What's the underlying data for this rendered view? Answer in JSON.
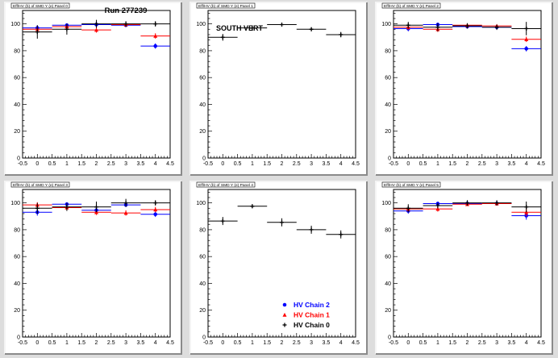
{
  "charts": [
    {
      "type": "scatter",
      "tab_label": "Eff/HV (b) of SMD Y (e) Panel 0",
      "header": "Run 277239",
      "label": "",
      "xlim": [
        -0.5,
        4.5
      ],
      "ylim": [
        0,
        110
      ],
      "xticks": [
        "-0.5",
        "0",
        "0.5",
        "1",
        "1.5",
        "2",
        "2.5",
        "3",
        "3.5",
        "4",
        "4.5"
      ],
      "yticks": [
        "0",
        "20",
        "40",
        "60",
        "80",
        "100"
      ],
      "series": [
        {
          "color": "#0000ff",
          "marker": "circle",
          "x": [
            0,
            1,
            2,
            3,
            4
          ],
          "y": [
            97,
            99,
            99.5,
            99,
            83.5
          ],
          "yerr": [
            2,
            1.5,
            1,
            1,
            2
          ]
        },
        {
          "color": "#ff0000",
          "marker": "triangle",
          "x": [
            0,
            1,
            2,
            3,
            4
          ],
          "y": [
            96,
            98,
            95.5,
            99.5,
            91
          ],
          "yerr": [
            2,
            1.5,
            2,
            1,
            2
          ]
        },
        {
          "color": "#000000",
          "marker": "plus",
          "x": [
            0,
            1,
            2,
            3,
            4
          ],
          "y": [
            94,
            96,
            100,
            100,
            100
          ],
          "yerr": [
            5,
            4,
            3,
            2,
            2
          ]
        }
      ]
    },
    {
      "type": "scatter",
      "tab_label": "Eff/HV (b) of SMD Y (e) Panel 1",
      "header": "",
      "label": "SOUTH VERT",
      "xlim": [
        -0.5,
        4.5
      ],
      "ylim": [
        0,
        110
      ],
      "xticks": [
        "-0.5",
        "0",
        "0.5",
        "1",
        "1.5",
        "2",
        "2.5",
        "3",
        "3.5",
        "4",
        "4.5"
      ],
      "yticks": [
        "0",
        "20",
        "40",
        "60",
        "80",
        "100"
      ],
      "series": [
        {
          "color": "#000000",
          "marker": "plus",
          "x": [
            0,
            1,
            2,
            3,
            4
          ],
          "y": [
            90,
            97,
            99.5,
            96,
            92
          ],
          "yerr": [
            2.5,
            1.5,
            1,
            1.5,
            2
          ]
        }
      ]
    },
    {
      "type": "scatter",
      "tab_label": "Eff/HV (b) of SMD Y (e) Panel 2",
      "header": "",
      "label": "",
      "xlim": [
        -0.5,
        4.5
      ],
      "ylim": [
        0,
        110
      ],
      "xticks": [
        "-0.5",
        "0",
        "0.5",
        "1",
        "1.5",
        "2",
        "2.5",
        "3",
        "3.5",
        "4",
        "4.5"
      ],
      "yticks": [
        "0",
        "20",
        "40",
        "60",
        "80",
        "100"
      ],
      "series": [
        {
          "color": "#0000ff",
          "marker": "circle",
          "x": [
            0,
            1,
            2,
            3,
            4
          ],
          "y": [
            96.5,
            99.5,
            98,
            97.5,
            81.5
          ],
          "yerr": [
            2,
            1,
            1,
            1,
            2
          ]
        },
        {
          "color": "#ff0000",
          "marker": "triangle",
          "x": [
            0,
            1,
            2,
            3,
            4
          ],
          "y": [
            97.5,
            96,
            99,
            98.5,
            88.5
          ],
          "yerr": [
            2,
            2,
            1,
            1,
            2
          ]
        },
        {
          "color": "#000000",
          "marker": "plus",
          "x": [
            0,
            1,
            2,
            3,
            4
          ],
          "y": [
            99,
            97.5,
            98.5,
            97.5,
            96.5
          ],
          "yerr": [
            2.5,
            3,
            2,
            2,
            5
          ]
        }
      ]
    },
    {
      "type": "scatter",
      "tab_label": "Eff/HV (b) of SMD Y (e) Panel 3",
      "header": "",
      "label": "",
      "xlim": [
        -0.5,
        4.5
      ],
      "ylim": [
        0,
        110
      ],
      "xticks": [
        "-0.5",
        "0",
        "0.5",
        "1",
        "1.5",
        "2",
        "2.5",
        "3",
        "3.5",
        "4",
        "4.5"
      ],
      "yticks": [
        "0",
        "20",
        "40",
        "60",
        "80",
        "100"
      ],
      "series": [
        {
          "color": "#0000ff",
          "marker": "circle",
          "x": [
            0,
            1,
            2,
            3,
            4
          ],
          "y": [
            93,
            99,
            94.5,
            98.5,
            91.5
          ],
          "yerr": [
            2.5,
            1.5,
            2,
            1.5,
            2
          ]
        },
        {
          "color": "#ff0000",
          "marker": "triangle",
          "x": [
            0,
            1,
            2,
            3,
            4
          ],
          "y": [
            98.5,
            96.5,
            93,
            92.5,
            95
          ],
          "yerr": [
            2,
            2,
            2,
            2,
            2
          ]
        },
        {
          "color": "#000000",
          "marker": "plus",
          "x": [
            0,
            1,
            2,
            3,
            4
          ],
          "y": [
            96,
            97,
            97,
            100,
            100
          ],
          "yerr": [
            4,
            3,
            4,
            3,
            2
          ]
        }
      ]
    },
    {
      "type": "scatter",
      "tab_label": "Eff/HV (b) of SMD Y (e) Panel 4",
      "header": "",
      "label": "",
      "xlim": [
        -0.5,
        4.5
      ],
      "ylim": [
        0,
        110
      ],
      "xticks": [
        "-0.5",
        "0",
        "0.5",
        "1",
        "1.5",
        "2",
        "2.5",
        "3",
        "3.5",
        "4",
        "4.5"
      ],
      "yticks": [
        "0",
        "20",
        "40",
        "60",
        "80",
        "100"
      ],
      "series": [
        {
          "color": "#000000",
          "marker": "plus",
          "x": [
            0,
            1,
            2,
            3,
            4
          ],
          "y": [
            86.5,
            97.5,
            85.5,
            80,
            76.5
          ],
          "yerr": [
            3,
            1.5,
            3,
            3,
            3
          ]
        }
      ],
      "legend": {
        "placement": "bottom-right",
        "entries": [
          {
            "label": "HV Chain 2",
            "color": "#0000ff",
            "marker": "circle"
          },
          {
            "label": "HV Chain 1",
            "color": "#ff0000",
            "marker": "triangle"
          },
          {
            "label": "HV Chain 0",
            "color": "#000000",
            "marker": "plus"
          }
        ]
      }
    },
    {
      "type": "scatter",
      "tab_label": "Eff/HV (b) of SMD Y (e) Panel 5",
      "header": "",
      "label": "",
      "xlim": [
        -0.5,
        4.5
      ],
      "ylim": [
        0,
        110
      ],
      "xticks": [
        "-0.5",
        "0",
        "0.5",
        "1",
        "1.5",
        "2",
        "2.5",
        "3",
        "3.5",
        "4",
        "4.5"
      ],
      "yticks": [
        "0",
        "20",
        "40",
        "60",
        "80",
        "100"
      ],
      "series": [
        {
          "color": "#0000ff",
          "marker": "circle",
          "x": [
            0,
            1,
            2,
            3,
            4
          ],
          "y": [
            94,
            99.5,
            99.5,
            99.5,
            90.5
          ],
          "yerr": [
            2,
            1,
            1,
            1,
            3
          ]
        },
        {
          "color": "#ff0000",
          "marker": "triangle",
          "x": [
            0,
            1,
            2,
            3,
            4
          ],
          "y": [
            95.5,
            95.5,
            99,
            99.5,
            93
          ],
          "yerr": [
            2,
            2,
            1,
            1,
            3
          ]
        },
        {
          "color": "#000000",
          "marker": "plus",
          "x": [
            0,
            1,
            2,
            3,
            4
          ],
          "y": [
            96,
            98,
            100,
            100,
            97
          ],
          "yerr": [
            3,
            2,
            2,
            2,
            4
          ]
        }
      ]
    }
  ]
}
